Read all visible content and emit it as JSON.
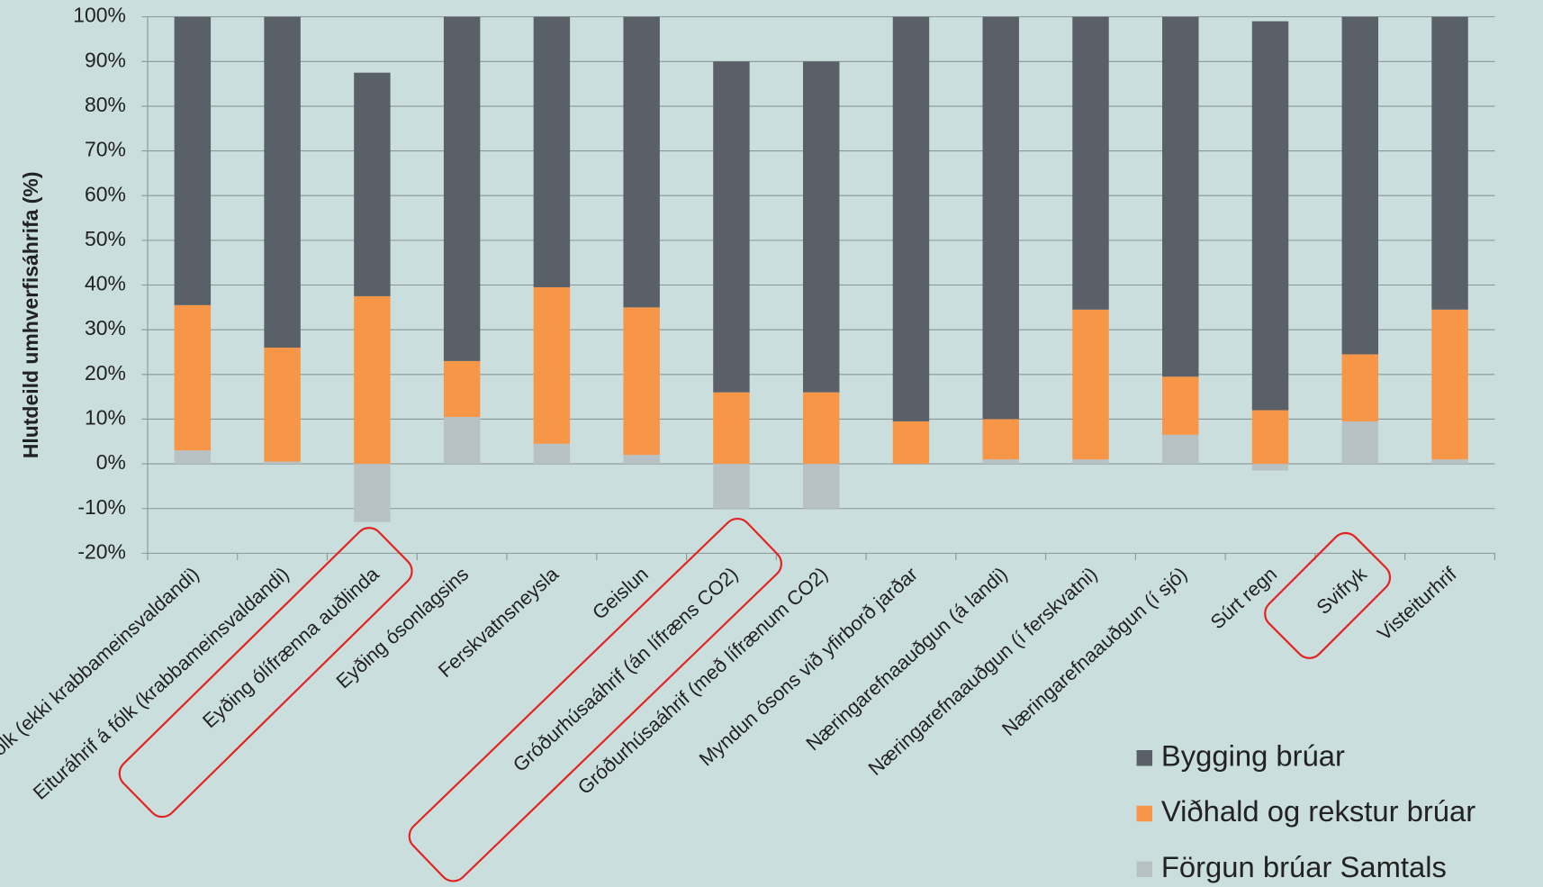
{
  "chart_data": {
    "type": "stacked_bar",
    "ylabel": "Hlutdeild umhverfisáhrifa (%)",
    "categories": [
      "Eituráhrif á fólk (ekki krabbameinsvaldandi)",
      "Eituráhrif á fólk (krabbameinsvaldandi)",
      "Eyðing ólífrænna auðlinda",
      "Eyðing ósonlagsins",
      "Ferskvatnsneysla",
      "Geislun",
      "Gróðurhúsaáhrif (án lífræns CO2)",
      "Gróðurhúsaáhrif (með lífrænum CO2)",
      "Myndun ósons við yfirborð jarðar",
      "Næringarefnaauðgun (á landi)",
      "Næringarefnaauðgun (í ferskvatni)",
      "Næringarefnaauðgun (í sjó)",
      "Súrt regn",
      "Svifryk",
      "Visteiturhrif"
    ],
    "series": [
      {
        "name": "Bygging brúar",
        "color": "#5a6068",
        "values": [
          64.5,
          74,
          50,
          77,
          60.5,
          65,
          74,
          74,
          90.5,
          90,
          65.5,
          80.5,
          87,
          75.5,
          65.5
        ]
      },
      {
        "name": "Viðhald og rekstur brúar",
        "color": "#f79646",
        "values": [
          32.5,
          25.5,
          37.5,
          12.5,
          35,
          33,
          16,
          16,
          9.5,
          9,
          33.5,
          13,
          12,
          15,
          33.5
        ]
      },
      {
        "name": "Förgun brúar Samtals",
        "color": "#b8c2c4",
        "values": [
          3,
          0.5,
          -13,
          10.5,
          4.5,
          2,
          -10,
          -10,
          0,
          1,
          1,
          6.5,
          -1.5,
          9.5,
          1
        ]
      }
    ],
    "ylim": [
      -20,
      100
    ],
    "yticks": [
      {
        "value": -20,
        "label": "-20%"
      },
      {
        "value": -10,
        "label": "-10%"
      },
      {
        "value": 0,
        "label": "0%"
      },
      {
        "value": 10,
        "label": "10%"
      },
      {
        "value": 20,
        "label": "20%"
      },
      {
        "value": 30,
        "label": "30%"
      },
      {
        "value": 40,
        "label": "40%"
      },
      {
        "value": 50,
        "label": "50%"
      },
      {
        "value": 60,
        "label": "60%"
      },
      {
        "value": 70,
        "label": "70%"
      },
      {
        "value": 80,
        "label": "80%"
      },
      {
        "value": 90,
        "label": "90%"
      },
      {
        "value": 100,
        "label": "100%"
      }
    ],
    "grid": true
  }
}
